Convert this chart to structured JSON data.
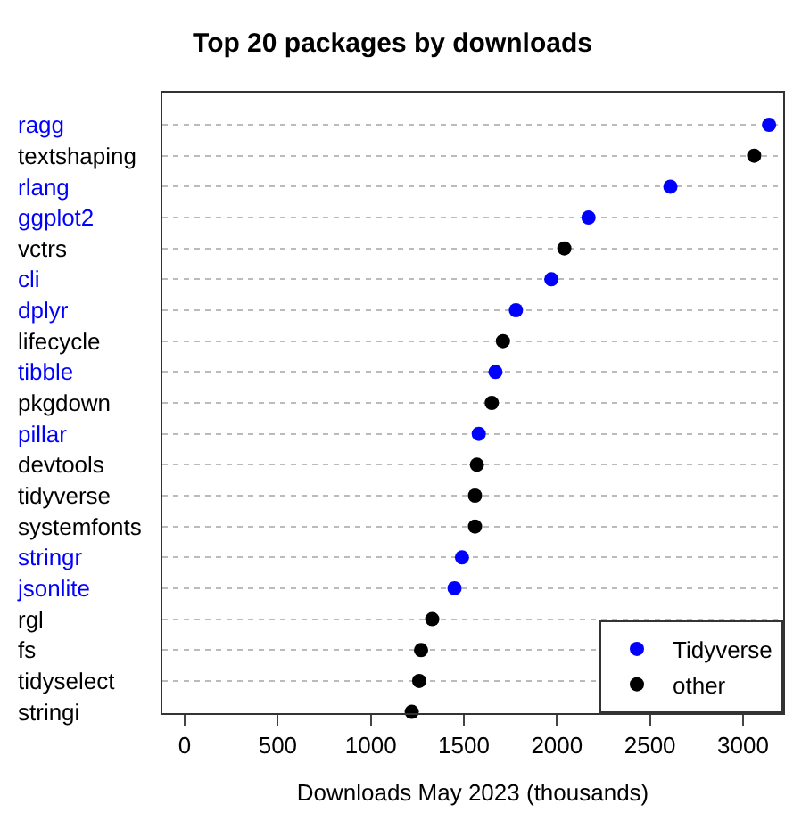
{
  "chart_data": {
    "type": "scatter",
    "orientation": "horizontal",
    "title": "Top 20 packages by downloads",
    "xlabel": "Downloads May 2023 (thousands)",
    "categories": [
      "ragg",
      "textshaping",
      "rlang",
      "ggplot2",
      "vctrs",
      "cli",
      "dplyr",
      "lifecycle",
      "tibble",
      "pkgdown",
      "pillar",
      "devtools",
      "tidyverse",
      "systemfonts",
      "stringr",
      "jsonlite",
      "rgl",
      "fs",
      "tidyselect",
      "stringi"
    ],
    "series": [
      {
        "name": "Tidyverse",
        "color": "#0000ff",
        "values": [
          3140,
          null,
          2610,
          2170,
          null,
          1970,
          1780,
          null,
          1670,
          null,
          1580,
          null,
          null,
          null,
          1490,
          1450,
          null,
          null,
          null,
          null
        ]
      },
      {
        "name": "other",
        "color": "#000000",
        "values": [
          null,
          3060,
          null,
          null,
          2040,
          null,
          null,
          1710,
          null,
          1650,
          null,
          1570,
          1560,
          1560,
          null,
          null,
          1330,
          1270,
          1260,
          1220
        ]
      }
    ],
    "xlim": [
      -120,
      3216
    ],
    "xticks": [
      0,
      500,
      1000,
      1500,
      2000,
      2500,
      3000
    ],
    "grid": "y",
    "legend": "bottom right",
    "marker": "circle"
  }
}
